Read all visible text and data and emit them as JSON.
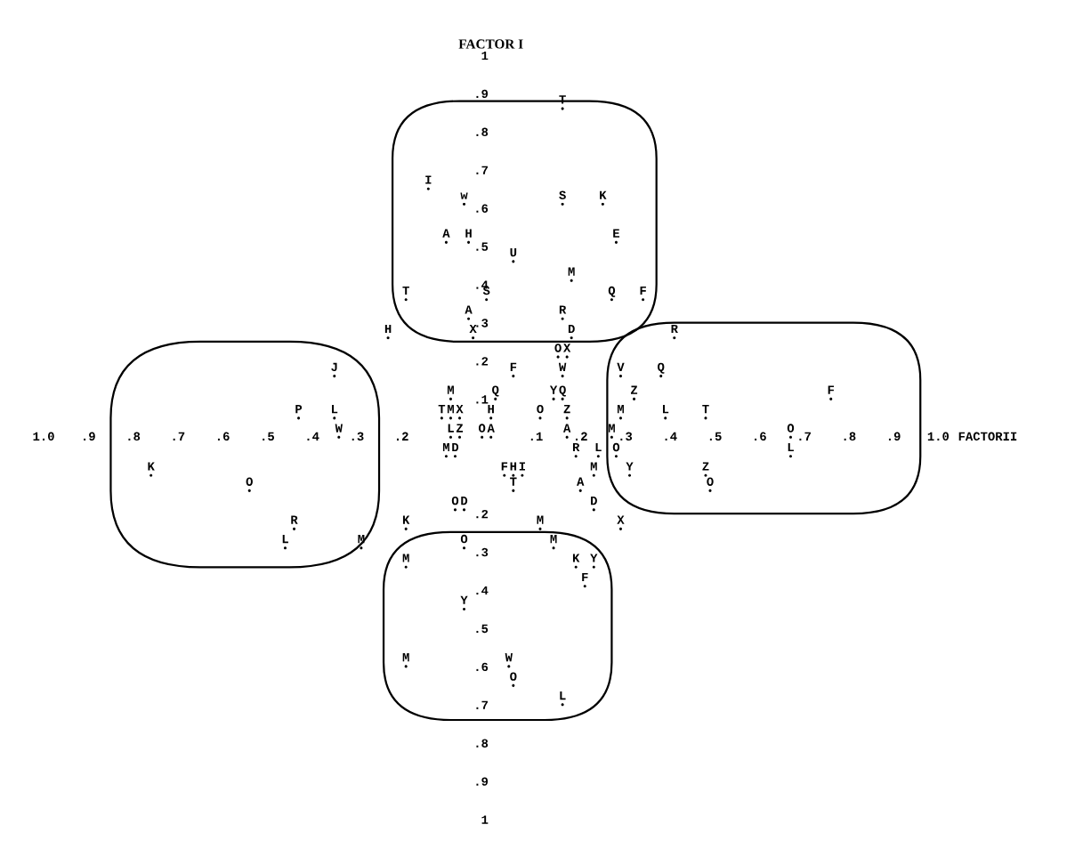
{
  "chart_data": {
    "type": "scatter",
    "xlabel": "FACTORII",
    "ylabel": "FACTOR I",
    "xlim": [
      -1.0,
      1.0
    ],
    "ylim": [
      -1.0,
      1.0
    ],
    "xticks": [
      {
        "value": -1.0,
        "label": "1.0"
      },
      {
        "value": -0.9,
        "label": ".9"
      },
      {
        "value": -0.8,
        "label": ".8"
      },
      {
        "value": -0.7,
        "label": ".7"
      },
      {
        "value": -0.6,
        "label": ".6"
      },
      {
        "value": -0.5,
        "label": ".5"
      },
      {
        "value": -0.4,
        "label": ".4"
      },
      {
        "value": -0.3,
        "label": ".3"
      },
      {
        "value": -0.2,
        "label": ".2"
      },
      {
        "value": 0.1,
        "label": ".1"
      },
      {
        "value": 0.2,
        "label": ".2"
      },
      {
        "value": 0.3,
        "label": ".3"
      },
      {
        "value": 0.4,
        "label": ".4"
      },
      {
        "value": 0.5,
        "label": ".5"
      },
      {
        "value": 0.6,
        "label": ".6"
      },
      {
        "value": 0.7,
        "label": ".7"
      },
      {
        "value": 0.8,
        "label": ".8"
      },
      {
        "value": 0.9,
        "label": ".9"
      },
      {
        "value": 1.0,
        "label": "1.0"
      }
    ],
    "yticks": [
      {
        "value": 1.0,
        "label": "1"
      },
      {
        "value": 0.9,
        "label": ".9"
      },
      {
        "value": 0.8,
        "label": ".8"
      },
      {
        "value": 0.7,
        "label": ".7"
      },
      {
        "value": 0.6,
        "label": ".6"
      },
      {
        "value": 0.5,
        "label": ".5"
      },
      {
        "value": 0.4,
        "label": ".4"
      },
      {
        "value": 0.3,
        "label": ".3"
      },
      {
        "value": 0.2,
        "label": ".2"
      },
      {
        "value": 0.1,
        "label": ".1"
      },
      {
        "value": -0.2,
        "label": ".2"
      },
      {
        "value": -0.3,
        "label": ".3"
      },
      {
        "value": -0.4,
        "label": ".4"
      },
      {
        "value": -0.5,
        "label": ".5"
      },
      {
        "value": -0.6,
        "label": ".6"
      },
      {
        "value": -0.7,
        "label": ".7"
      },
      {
        "value": -0.8,
        "label": ".8"
      },
      {
        "value": -0.9,
        "label": ".9"
      },
      {
        "value": -1.0,
        "label": "1"
      }
    ],
    "marker": "circle",
    "series": [
      {
        "color": "#000000",
        "x": [
          0.16,
          -0.14,
          -0.06,
          0.16,
          0.25,
          -0.1,
          -0.05,
          0.28,
          0.05,
          0.18,
          -0.19,
          -0.01,
          0.27,
          0.34,
          -0.05,
          0.16,
          -0.23,
          -0.04,
          0.18,
          0.41,
          0.15,
          0.17,
          -0.35,
          0.05,
          0.16,
          0.29,
          0.38,
          -0.09,
          0.01,
          0.14,
          0.16,
          0.32,
          0.76,
          -0.43,
          -0.35,
          -0.11,
          -0.09,
          -0.07,
          0.0,
          0.11,
          0.17,
          0.29,
          0.39,
          0.48,
          -0.34,
          -0.09,
          -0.07,
          -0.02,
          0.0,
          0.17,
          0.27,
          0.67,
          -0.1,
          -0.08,
          0.19,
          0.24,
          0.28,
          0.67,
          -0.76,
          0.03,
          0.05,
          0.07,
          0.23,
          0.31,
          0.48,
          -0.54,
          0.05,
          0.2,
          0.49,
          -0.08,
          -0.06,
          0.23,
          -0.44,
          -0.19,
          0.11,
          0.29,
          -0.46,
          -0.29,
          -0.06,
          0.14,
          -0.19,
          0.19,
          0.23,
          0.21,
          -0.06,
          -0.19,
          0.04,
          0.05,
          0.16
        ],
        "values": [
          0.86,
          0.65,
          0.61,
          0.61,
          0.61,
          0.51,
          0.51,
          0.51,
          0.46,
          0.41,
          0.36,
          0.36,
          0.36,
          0.36,
          0.31,
          0.31,
          0.26,
          0.26,
          0.26,
          0.26,
          0.21,
          0.21,
          0.16,
          0.16,
          0.16,
          0.16,
          0.16,
          0.1,
          0.1,
          0.1,
          0.1,
          0.1,
          0.1,
          0.05,
          0.05,
          0.05,
          0.05,
          0.05,
          0.05,
          0.05,
          0.05,
          0.05,
          0.05,
          0.05,
          0.0,
          0.0,
          0.0,
          0.0,
          0.0,
          0.0,
          0.0,
          0.0,
          -0.05,
          -0.05,
          -0.05,
          -0.05,
          -0.05,
          -0.05,
          -0.1,
          -0.1,
          -0.1,
          -0.1,
          -0.1,
          -0.1,
          -0.1,
          -0.14,
          -0.14,
          -0.14,
          -0.14,
          -0.19,
          -0.19,
          -0.19,
          -0.24,
          -0.24,
          -0.24,
          -0.24,
          -0.29,
          -0.29,
          -0.29,
          -0.29,
          -0.34,
          -0.34,
          -0.34,
          -0.39,
          -0.45,
          -0.6,
          -0.6,
          -0.65,
          -0.7
        ],
        "value_labels": [
          "T",
          "I",
          "w",
          "S",
          "K",
          "A",
          "H",
          "E",
          "U",
          "M",
          "T",
          "S",
          "Q",
          "F",
          "A",
          "R",
          "H",
          "X",
          "D",
          "R",
          "O",
          "X",
          "J",
          "F",
          "W",
          "V",
          "Q",
          "M",
          "Q",
          "Y",
          "Q",
          "Z",
          "F",
          "P",
          "L",
          "T",
          "M",
          "X",
          "H",
          "O",
          "Z",
          "M",
          "L",
          "T",
          "W",
          "L",
          "Z",
          "O",
          "A",
          "A",
          "M",
          "O",
          "M",
          "D",
          "R",
          "L",
          "O",
          "L",
          "K",
          "F",
          "H",
          "I",
          "M",
          "Y",
          "Z",
          "O",
          "T",
          "A",
          "O",
          "O",
          "D",
          "D",
          "R",
          "K",
          "M",
          "X",
          "L",
          "M",
          "O",
          "M",
          "M",
          "K",
          "Y",
          "F",
          "Y",
          "M",
          "W",
          "O",
          "L"
        ]
      }
    ]
  }
}
